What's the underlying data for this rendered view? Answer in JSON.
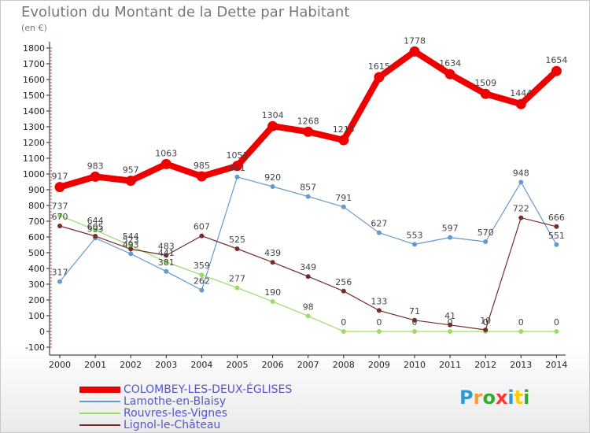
{
  "title": "Evolution du Montant de la Dette par Habitant",
  "unit_label": "(en €)",
  "logo_text": "Proxiti",
  "logo_colors": [
    "#3399cc",
    "#ff9933",
    "#33aa33",
    "#ff3333",
    "#3399cc",
    "#ffcc00",
    "#33aa33"
  ],
  "chart_data": {
    "type": "line",
    "title": "Evolution du Montant de la Dette par Habitant",
    "ylabel": "(en €)",
    "xlabel": "",
    "x": [
      "2000",
      "2001",
      "2002",
      "2003",
      "2004",
      "2005",
      "2006",
      "2007",
      "2008",
      "2009",
      "2010",
      "2011",
      "2012",
      "2013",
      "2014"
    ],
    "yticks": [
      -100,
      0,
      100,
      200,
      300,
      400,
      500,
      600,
      700,
      800,
      900,
      1000,
      1100,
      1200,
      1300,
      1400,
      1500,
      1600,
      1700,
      1800
    ],
    "ylim": [
      -100,
      1800
    ],
    "grid": false,
    "legend_position": "bottom-left",
    "series": [
      {
        "name": "COLOMBEY-LES-DEUX-ÉGLISES",
        "color": "#ee0000",
        "width": 8,
        "values": [
          917,
          983,
          957,
          1063,
          985,
          1051,
          1304,
          1268,
          1215,
          1615,
          1778,
          1634,
          1509,
          1444,
          1654
        ],
        "labels": [
          "917",
          "983",
          "957",
          "1063",
          "985",
          "1051",
          "1304",
          "1268",
          "1215",
          "1615",
          "1778",
          "1634",
          "1509",
          "1444",
          "1654"
        ]
      },
      {
        "name": "Lamothe-en-Blaisy",
        "color": "#6699cc",
        "width": 1.2,
        "values": [
          317,
          593,
          493,
          381,
          262,
          981,
          920,
          857,
          791,
          627,
          553,
          597,
          570,
          948,
          551
        ],
        "labels": [
          "317",
          "593",
          "493",
          "381",
          "262",
          "981",
          "920",
          "857",
          "791",
          "627",
          "553",
          "597",
          "570",
          "948",
          "551"
        ]
      },
      {
        "name": "Rouvres-les-Vignes",
        "color": "#99dd66",
        "width": 1.2,
        "values": [
          737,
          644,
          544,
          441,
          359,
          277,
          190,
          98,
          0,
          0,
          0,
          0,
          0,
          0,
          0
        ],
        "labels": [
          "737",
          "644",
          "544",
          "441",
          "359",
          "277",
          "190",
          "98",
          "0",
          "0",
          "0",
          "0",
          "0",
          "0",
          "0"
        ]
      },
      {
        "name": "Lignol-le-Château",
        "color": "#7a2a2a",
        "width": 1.2,
        "values": [
          670,
          605,
          523,
          483,
          607,
          525,
          439,
          349,
          256,
          133,
          71,
          41,
          10,
          722,
          666
        ],
        "labels": [
          "670",
          "605",
          "523",
          "483",
          "607",
          "525",
          "439",
          "349",
          "256",
          "133",
          "71",
          "41",
          "10",
          "722",
          "666"
        ]
      }
    ]
  }
}
